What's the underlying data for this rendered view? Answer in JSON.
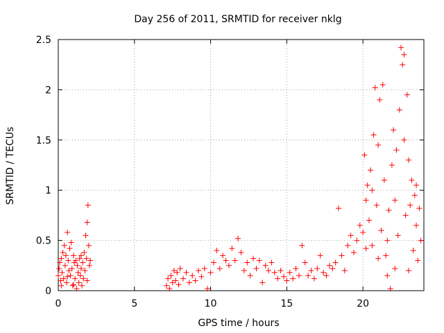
{
  "chart_data": {
    "type": "scatter",
    "title": "Day 256 of 2011, SRMTID for receiver nklg",
    "xlabel": "GPS time / hours",
    "ylabel": "SRMTID / TECUs",
    "xlim": [
      0,
      24
    ],
    "ylim": [
      0,
      2.5
    ],
    "xticks": [
      0,
      5,
      10,
      15,
      20
    ],
    "yticks": [
      0,
      0.5,
      1,
      1.5,
      2,
      2.5
    ],
    "grid": true,
    "marker": "+",
    "marker_color": "#ff0000",
    "series": [
      {
        "points": [
          [
            0.0,
            0.15
          ],
          [
            0.05,
            0.22
          ],
          [
            0.1,
            0.28
          ],
          [
            0.15,
            0.1
          ],
          [
            0.2,
            0.32
          ],
          [
            0.25,
            0.18
          ],
          [
            0.3,
            0.38
          ],
          [
            0.35,
            0.12
          ],
          [
            0.4,
            0.45
          ],
          [
            0.45,
            0.25
          ],
          [
            0.5,
            0.35
          ],
          [
            0.55,
            0.08
          ],
          [
            0.6,
            0.58
          ],
          [
            0.65,
            0.3
          ],
          [
            0.7,
            0.2
          ],
          [
            0.75,
            0.42
          ],
          [
            0.8,
            0.15
          ],
          [
            0.85,
            0.48
          ],
          [
            0.9,
            0.22
          ],
          [
            0.95,
            0.05
          ],
          [
            1.0,
            0.35
          ],
          [
            1.05,
            0.28
          ],
          [
            1.1,
            0.12
          ],
          [
            1.15,
            0.3
          ],
          [
            1.2,
            0.02
          ],
          [
            1.25,
            0.25
          ],
          [
            1.3,
            0.18
          ],
          [
            1.35,
            0.08
          ],
          [
            1.4,
            0.32
          ],
          [
            1.45,
            0.15
          ],
          [
            1.5,
            0.22
          ],
          [
            1.55,
            0.05
          ],
          [
            1.6,
            0.28
          ],
          [
            1.65,
            0.12
          ],
          [
            1.7,
            0.38
          ],
          [
            1.75,
            0.2
          ],
          [
            1.8,
            0.55
          ],
          [
            1.85,
            0.32
          ],
          [
            1.9,
            0.68
          ],
          [
            1.95,
            0.85
          ],
          [
            2.0,
            0.45
          ],
          [
            2.05,
            0.25
          ],
          [
            2.1,
            0.3
          ],
          [
            0.2,
            0.05
          ],
          [
            0.6,
            0.14
          ],
          [
            1.0,
            0.06
          ],
          [
            1.5,
            0.35
          ],
          [
            1.9,
            0.1
          ],
          [
            7.1,
            0.05
          ],
          [
            7.2,
            0.12
          ],
          [
            7.3,
            0.02
          ],
          [
            7.4,
            0.15
          ],
          [
            7.5,
            0.08
          ],
          [
            7.6,
            0.2
          ],
          [
            7.7,
            0.1
          ],
          [
            7.8,
            0.18
          ],
          [
            7.9,
            0.06
          ],
          [
            8.0,
            0.22
          ],
          [
            8.2,
            0.12
          ],
          [
            8.4,
            0.18
          ],
          [
            8.6,
            0.08
          ],
          [
            8.8,
            0.15
          ],
          [
            9.0,
            0.1
          ],
          [
            9.2,
            0.2
          ],
          [
            9.4,
            0.14
          ],
          [
            9.6,
            0.22
          ],
          [
            9.8,
            0.02
          ],
          [
            10.0,
            0.18
          ],
          [
            10.2,
            0.28
          ],
          [
            10.4,
            0.4
          ],
          [
            10.6,
            0.22
          ],
          [
            10.8,
            0.35
          ],
          [
            11.0,
            0.3
          ],
          [
            11.2,
            0.25
          ],
          [
            11.4,
            0.42
          ],
          [
            11.6,
            0.3
          ],
          [
            11.8,
            0.52
          ],
          [
            12.0,
            0.38
          ],
          [
            12.2,
            0.2
          ],
          [
            12.4,
            0.28
          ],
          [
            12.6,
            0.15
          ],
          [
            12.8,
            0.32
          ],
          [
            13.0,
            0.22
          ],
          [
            13.2,
            0.3
          ],
          [
            13.4,
            0.08
          ],
          [
            13.6,
            0.25
          ],
          [
            13.8,
            0.2
          ],
          [
            14.0,
            0.28
          ],
          [
            14.2,
            0.18
          ],
          [
            14.4,
            0.12
          ],
          [
            14.6,
            0.2
          ],
          [
            14.8,
            0.14
          ],
          [
            15.0,
            0.1
          ],
          [
            15.2,
            0.18
          ],
          [
            15.4,
            0.12
          ],
          [
            15.6,
            0.22
          ],
          [
            15.8,
            0.15
          ],
          [
            16.0,
            0.45
          ],
          [
            16.2,
            0.28
          ],
          [
            16.4,
            0.15
          ],
          [
            16.6,
            0.2
          ],
          [
            16.8,
            0.12
          ],
          [
            17.0,
            0.22
          ],
          [
            17.2,
            0.35
          ],
          [
            17.4,
            0.18
          ],
          [
            17.6,
            0.15
          ],
          [
            17.8,
            0.25
          ],
          [
            18.0,
            0.22
          ],
          [
            18.2,
            0.28
          ],
          [
            18.4,
            0.82
          ],
          [
            18.6,
            0.35
          ],
          [
            18.8,
            0.2
          ],
          [
            19.0,
            0.45
          ],
          [
            19.2,
            0.55
          ],
          [
            19.4,
            0.38
          ],
          [
            19.6,
            0.5
          ],
          [
            19.8,
            0.65
          ],
          [
            20.0,
            0.58
          ],
          [
            20.1,
            1.35
          ],
          [
            20.2,
            0.9
          ],
          [
            20.3,
            1.05
          ],
          [
            20.4,
            0.7
          ],
          [
            20.5,
            1.2
          ],
          [
            20.6,
            0.45
          ],
          [
            20.7,
            1.55
          ],
          [
            20.8,
            2.02
          ],
          [
            20.9,
            0.85
          ],
          [
            21.0,
            1.45
          ],
          [
            21.1,
            1.9
          ],
          [
            21.2,
            0.6
          ],
          [
            21.3,
            2.05
          ],
          [
            21.4,
            1.1
          ],
          [
            21.5,
            0.35
          ],
          [
            21.6,
            0.15
          ],
          [
            21.7,
            0.8
          ],
          [
            21.8,
            0.02
          ],
          [
            21.9,
            1.25
          ],
          [
            22.0,
            1.6
          ],
          [
            22.1,
            0.9
          ],
          [
            22.2,
            1.4
          ],
          [
            22.3,
            0.55
          ],
          [
            22.4,
            1.8
          ],
          [
            22.5,
            2.42
          ],
          [
            22.6,
            2.25
          ],
          [
            22.7,
            1.5
          ],
          [
            22.8,
            0.75
          ],
          [
            22.9,
            1.95
          ],
          [
            23.0,
            1.3
          ],
          [
            23.1,
            0.85
          ],
          [
            23.2,
            1.1
          ],
          [
            23.3,
            0.4
          ],
          [
            23.4,
            0.95
          ],
          [
            23.5,
            0.65
          ],
          [
            23.6,
            0.3
          ],
          [
            23.7,
            0.82
          ],
          [
            23.8,
            0.5
          ],
          [
            20.2,
            0.42
          ],
          [
            20.6,
            1.0
          ],
          [
            21.0,
            0.32
          ],
          [
            21.6,
            0.5
          ],
          [
            22.1,
            0.22
          ],
          [
            22.7,
            2.35
          ],
          [
            23.0,
            0.2
          ],
          [
            23.5,
            1.05
          ]
        ]
      }
    ]
  }
}
